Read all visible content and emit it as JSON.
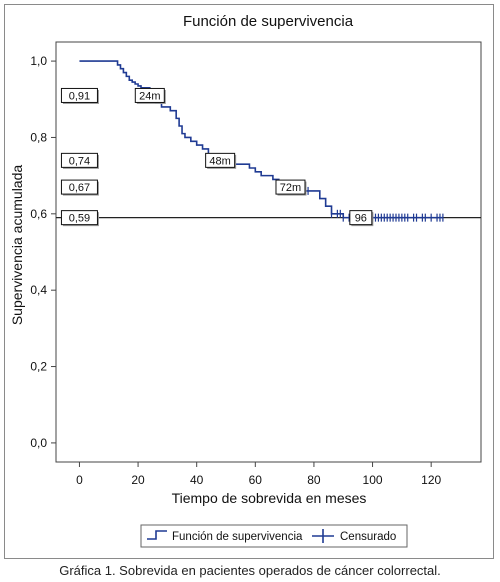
{
  "chart_data": {
    "type": "line",
    "title": "Función de supervivencia",
    "xlabel": "Tiempo de sobrevida en meses",
    "ylabel": "Supervivencia acumulada",
    "xlim": [
      -8,
      137
    ],
    "ylim": [
      -0.05,
      1.05
    ],
    "x_ticks": [
      0,
      20,
      40,
      60,
      80,
      100,
      120
    ],
    "y_ticks": [
      0.0,
      0.2,
      0.4,
      0.6,
      0.8,
      1.0
    ],
    "y_tick_labels": [
      "0,0",
      "0,2",
      "0,4",
      "0,6",
      "0,8",
      "1,0"
    ],
    "grid": false,
    "legend_position": "bottom",
    "series": [
      {
        "name": "Función de supervivencia",
        "color": "#1f3a93",
        "x": [
          0,
          12,
          13,
          14,
          15,
          16,
          17,
          18,
          19,
          20,
          21,
          24,
          26,
          28,
          29,
          31,
          33,
          34,
          35,
          36,
          38,
          40,
          42,
          44,
          46,
          48,
          50,
          54,
          58,
          60,
          62,
          66,
          68,
          70,
          72,
          74,
          76,
          80,
          82,
          84,
          86,
          88,
          90,
          92,
          94,
          96,
          124
        ],
        "y": [
          1.0,
          1.0,
          0.99,
          0.98,
          0.97,
          0.96,
          0.95,
          0.945,
          0.94,
          0.935,
          0.93,
          0.91,
          0.89,
          0.88,
          0.88,
          0.87,
          0.85,
          0.83,
          0.81,
          0.8,
          0.79,
          0.78,
          0.77,
          0.75,
          0.74,
          0.74,
          0.73,
          0.73,
          0.72,
          0.71,
          0.7,
          0.69,
          0.68,
          0.68,
          0.67,
          0.66,
          0.66,
          0.66,
          0.64,
          0.62,
          0.6,
          0.6,
          0.59,
          0.59,
          0.59,
          0.59,
          0.59
        ]
      },
      {
        "name": "Censurado",
        "color": "#1f3a93",
        "type": "censor-marks",
        "x": [
          78,
          86,
          88,
          89,
          90,
          92,
          94,
          95,
          96,
          98,
          99,
          100,
          101,
          102,
          103,
          104,
          105,
          106,
          107,
          108,
          109,
          110,
          111,
          112,
          114,
          115,
          117,
          118,
          120,
          122,
          123,
          124
        ],
        "y": [
          0.66,
          0.6,
          0.6,
          0.6,
          0.59,
          0.59,
          0.59,
          0.59,
          0.59,
          0.59,
          0.59,
          0.59,
          0.59,
          0.59,
          0.59,
          0.59,
          0.59,
          0.59,
          0.59,
          0.59,
          0.59,
          0.59,
          0.59,
          0.59,
          0.59,
          0.59,
          0.59,
          0.59,
          0.59,
          0.59,
          0.59,
          0.59
        ]
      }
    ],
    "reference_line": {
      "y": 0.59
    },
    "left_value_labels": [
      {
        "y": 0.91,
        "text": "0,91"
      },
      {
        "y": 0.74,
        "text": "0,74"
      },
      {
        "y": 0.67,
        "text": "0,67"
      },
      {
        "y": 0.59,
        "text": "0,59"
      }
    ],
    "time_labels": [
      {
        "x": 24,
        "y": 0.91,
        "text": "24m"
      },
      {
        "x": 48,
        "y": 0.74,
        "text": "48m"
      },
      {
        "x": 72,
        "y": 0.67,
        "text": "72m"
      },
      {
        "x": 96,
        "y": 0.59,
        "text": "96"
      }
    ]
  },
  "legend": {
    "items": [
      "Función de supervivencia",
      "Censurado"
    ]
  },
  "caption": "Gráfica 1. Sobrevida en pacientes operados de cáncer colorrectal."
}
